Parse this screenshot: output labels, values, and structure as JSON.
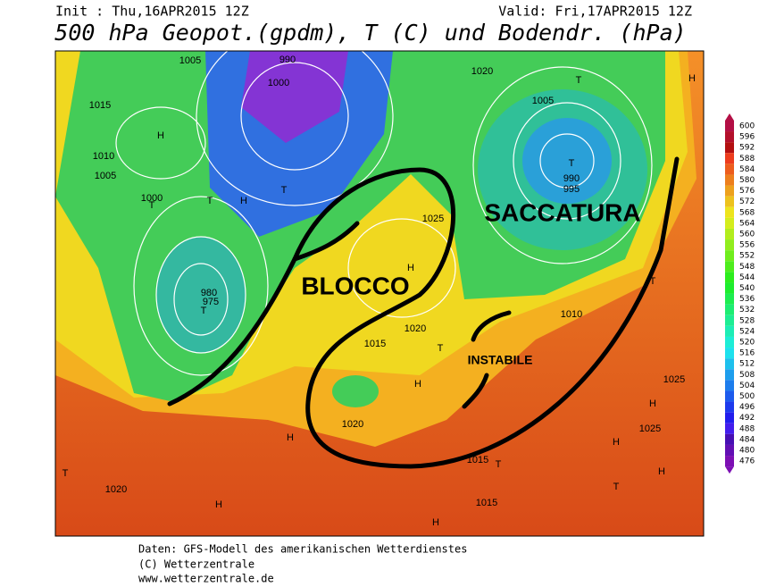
{
  "header": {
    "init": "Init : Thu,16APR2015 12Z",
    "valid": "Valid: Fri,17APR2015 12Z",
    "title": "500 hPa Geopot.(gpdm), T (C) und Bodendr. (hPa)"
  },
  "map": {
    "annotations": [
      "BLOCCO",
      "SACCATURA",
      "INSTABILE"
    ],
    "labels": [
      "H",
      "T",
      "T",
      "H",
      "T",
      "T",
      "T",
      "T",
      "H",
      "H",
      "H",
      "T",
      "H",
      "T",
      "H",
      "H",
      "T",
      "H",
      "T",
      "H",
      "H",
      "T",
      "1005",
      "1015",
      "1010",
      "1005",
      "1000",
      "990",
      "1000",
      "980",
      "975",
      "1025",
      "1020",
      "1015",
      "1020",
      "1005",
      "990",
      "995",
      "1020",
      "1025",
      "1010",
      "1015",
      "1020",
      "1025",
      "1015"
    ]
  },
  "colorbar": {
    "ticks": [
      600,
      596,
      592,
      588,
      584,
      580,
      576,
      572,
      568,
      564,
      560,
      556,
      552,
      548,
      544,
      540,
      536,
      532,
      528,
      524,
      520,
      516,
      512,
      508,
      504,
      500,
      496,
      492,
      488,
      484,
      480,
      476
    ]
  },
  "footer": [
    "Daten: GFS-Modell des amerikanischen Wetterdienstes",
    "(C) Wetterzentrale",
    "www.wetterzentrale.de"
  ]
}
